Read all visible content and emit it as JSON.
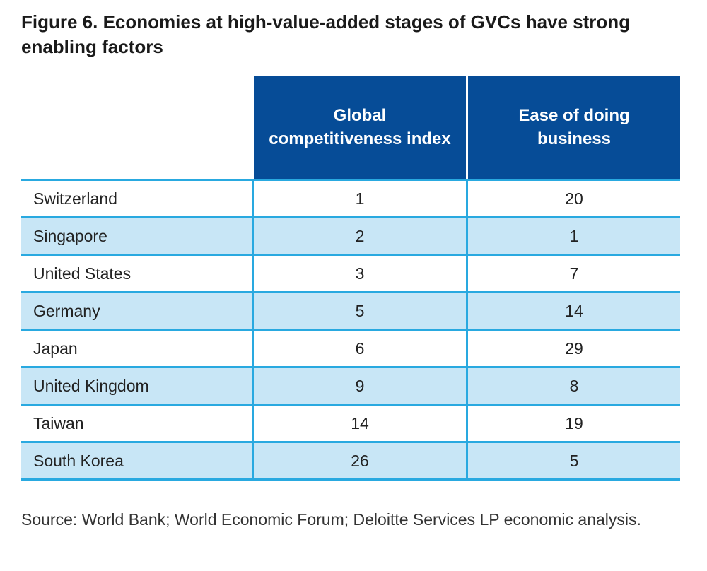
{
  "title": "Figure 6. Economies at high-value-added stages of GVCs have strong enabling factors",
  "colors": {
    "header_bg": "#064c97",
    "rule": "#29a9e0",
    "alt_row": "#c8e6f6"
  },
  "chart_data": {
    "type": "table",
    "columns": [
      "",
      "Global competitiveness index",
      "Ease of doing business"
    ],
    "rows": [
      {
        "country": "Switzerland",
        "gci": "1",
        "edb": "20"
      },
      {
        "country": "Singapore",
        "gci": "2",
        "edb": "1"
      },
      {
        "country": "United States",
        "gci": "3",
        "edb": "7"
      },
      {
        "country": "Germany",
        "gci": "5",
        "edb": "14"
      },
      {
        "country": "Japan",
        "gci": "6",
        "edb": "29"
      },
      {
        "country": "United Kingdom",
        "gci": "9",
        "edb": "8"
      },
      {
        "country": "Taiwan",
        "gci": "14",
        "edb": "19"
      },
      {
        "country": "South Korea",
        "gci": "26",
        "edb": "5"
      }
    ]
  },
  "source": "Source: World Bank; World Economic Forum; Deloitte Services LP economic analysis."
}
